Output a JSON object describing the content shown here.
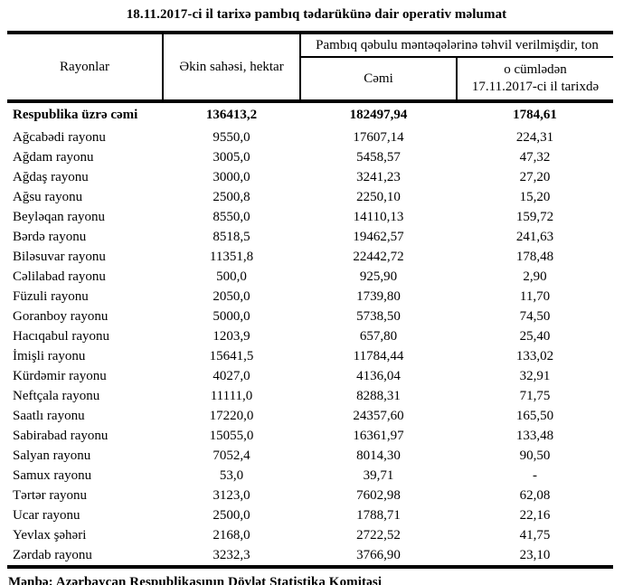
{
  "title": "18.11.2017-ci il tarixə pambıq tədarükünə dair operativ məlumat",
  "table": {
    "headers": {
      "regions": "Rayonlar",
      "area": "Əkin sahəsi, hektar",
      "delivered_group": "Pambıq qəbulu məntəqələrinə təhvil verilmişdir, ton",
      "total": "Cəmi",
      "including_line1": "o cümlədən",
      "including_line2": "17.11.2017-ci il tarixdə"
    },
    "total_row": {
      "region": "Respublika üzrə cəmi",
      "area": "136413,2",
      "total": "182497,94",
      "daily": "1784,61"
    },
    "rows": [
      {
        "region": "Ağcabədi rayonu",
        "area": "9550,0",
        "total": "17607,14",
        "daily": "224,31"
      },
      {
        "region": "Ağdam rayonu",
        "area": "3005,0",
        "total": "5458,57",
        "daily": "47,32"
      },
      {
        "region": "Ağdaş rayonu",
        "area": "3000,0",
        "total": "3241,23",
        "daily": "27,20"
      },
      {
        "region": "Ağsu rayonu",
        "area": "2500,8",
        "total": "2250,10",
        "daily": "15,20"
      },
      {
        "region": "Beyləqan rayonu",
        "area": "8550,0",
        "total": "14110,13",
        "daily": "159,72"
      },
      {
        "region": "Bərdə rayonu",
        "area": "8518,5",
        "total": "19462,57",
        "daily": "241,63"
      },
      {
        "region": "Biləsuvar rayonu",
        "area": "11351,8",
        "total": "22442,72",
        "daily": "178,48"
      },
      {
        "region": "Cəlilabad rayonu",
        "area": "500,0",
        "total": "925,90",
        "daily": "2,90"
      },
      {
        "region": "Füzuli rayonu",
        "area": "2050,0",
        "total": "1739,80",
        "daily": "11,70"
      },
      {
        "region": "Goranboy rayonu",
        "area": "5000,0",
        "total": "5738,50",
        "daily": "74,50"
      },
      {
        "region": "Hacıqabul rayonu",
        "area": "1203,9",
        "total": "657,80",
        "daily": "25,40"
      },
      {
        "region": "İmişli rayonu",
        "area": "15641,5",
        "total": "11784,44",
        "daily": "133,02"
      },
      {
        "region": "Kürdəmir rayonu",
        "area": "4027,0",
        "total": "4136,04",
        "daily": "32,91"
      },
      {
        "region": "Neftçala rayonu",
        "area": "11111,0",
        "total": "8288,31",
        "daily": "71,75"
      },
      {
        "region": "Saatlı rayonu",
        "area": "17220,0",
        "total": "24357,60",
        "daily": "165,50"
      },
      {
        "region": "Sabirabad rayonu",
        "area": "15055,0",
        "total": "16361,97",
        "daily": "133,48"
      },
      {
        "region": "Salyan rayonu",
        "area": "7052,4",
        "total": "8014,30",
        "daily": "90,50"
      },
      {
        "region": "Samux rayonu",
        "area": "53,0",
        "total": "39,71",
        "daily": "-"
      },
      {
        "region": "Tərtər rayonu",
        "area": "3123,0",
        "total": "7602,98",
        "daily": "62,08"
      },
      {
        "region": "Ucar rayonu",
        "area": "2500,0",
        "total": "1788,71",
        "daily": "22,16"
      },
      {
        "region": "Yevlax şəhəri",
        "area": "2168,0",
        "total": "2722,52",
        "daily": "41,75"
      },
      {
        "region": "Zərdab rayonu",
        "area": "3232,3",
        "total": "3766,90",
        "daily": "23,10"
      }
    ]
  },
  "footer": "Mənbə: Azərbaycan Respublikasının Dövlət Statistika Komitəsi"
}
